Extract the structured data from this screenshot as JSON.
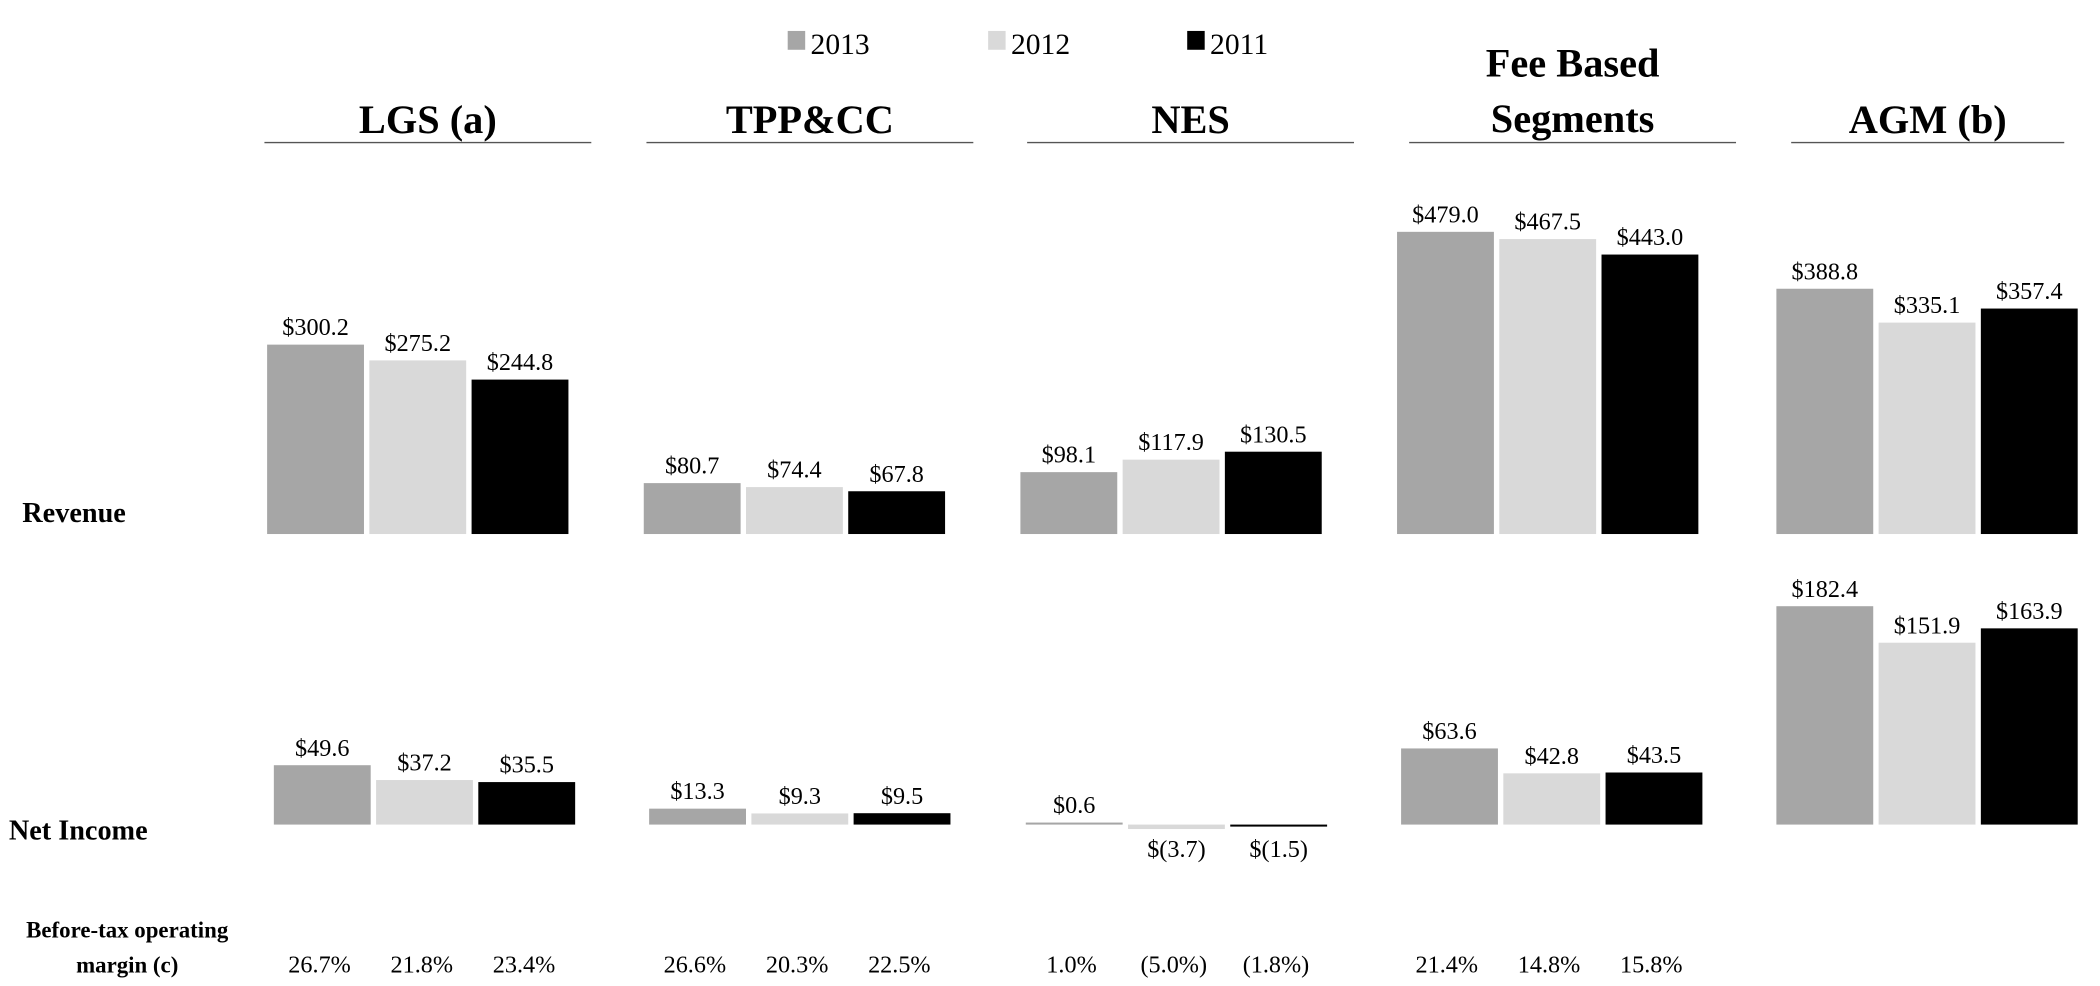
{
  "chart_data": {
    "type": "bar",
    "legend": {
      "placement": "top-center",
      "entries": [
        {
          "name": "2013",
          "color": "#a6a6a6"
        },
        {
          "name": "2012",
          "color": "#d9d9d9"
        },
        {
          "name": "2011",
          "color": "#000000"
        }
      ]
    },
    "row_labels": {
      "revenue": "Revenue",
      "net_income": "Net Income",
      "margin_line1": "Before-tax operating",
      "margin_line2": "margin (c)"
    },
    "segments": [
      {
        "title": [
          "LGS (a)"
        ],
        "revenue": [
          300.2,
          275.2,
          244.8
        ],
        "revenue_labels": [
          "$300.2",
          "$275.2",
          "$244.8"
        ],
        "net_income": [
          49.6,
          37.2,
          35.5
        ],
        "net_income_labels": [
          "$49.6",
          "$37.2",
          "$35.5"
        ],
        "margin": [
          "26.7%",
          "21.8%",
          "23.4%"
        ]
      },
      {
        "title": [
          "TPP&CC"
        ],
        "revenue": [
          80.7,
          74.4,
          67.8
        ],
        "revenue_labels": [
          "$80.7",
          "$74.4",
          "$67.8"
        ],
        "net_income": [
          13.3,
          9.3,
          9.5
        ],
        "net_income_labels": [
          "$13.3",
          "$9.3",
          "$9.5"
        ],
        "margin": [
          "26.6%",
          "20.3%",
          "22.5%"
        ]
      },
      {
        "title": [
          "NES"
        ],
        "revenue": [
          98.1,
          117.9,
          130.5
        ],
        "revenue_labels": [
          "$98.1",
          "$117.9",
          "$130.5"
        ],
        "net_income": [
          0.6,
          -3.7,
          -1.5
        ],
        "net_income_labels": [
          "$0.6",
          "$(3.7)",
          "$(1.5)"
        ],
        "margin": [
          "1.0%",
          "(5.0%)",
          "(1.8%)"
        ]
      },
      {
        "title": [
          "Fee Based",
          "Segments"
        ],
        "revenue": [
          479.0,
          467.5,
          443.0
        ],
        "revenue_labels": [
          "$479.0",
          "$467.5",
          "$443.0"
        ],
        "net_income": [
          63.6,
          42.8,
          43.5
        ],
        "net_income_labels": [
          "$63.6",
          "$42.8",
          "$43.5"
        ],
        "margin": [
          "21.4%",
          "14.8%",
          "15.8%"
        ]
      },
      {
        "title": [
          "AGM (b)"
        ],
        "revenue": [
          388.8,
          335.1,
          357.4
        ],
        "revenue_labels": [
          "$388.8",
          "$335.1",
          "$357.4"
        ],
        "net_income": [
          182.4,
          151.9,
          163.9
        ],
        "net_income_labels": [
          "$182.4",
          "$151.9",
          "$163.9"
        ],
        "margin": []
      }
    ],
    "grid": false
  }
}
